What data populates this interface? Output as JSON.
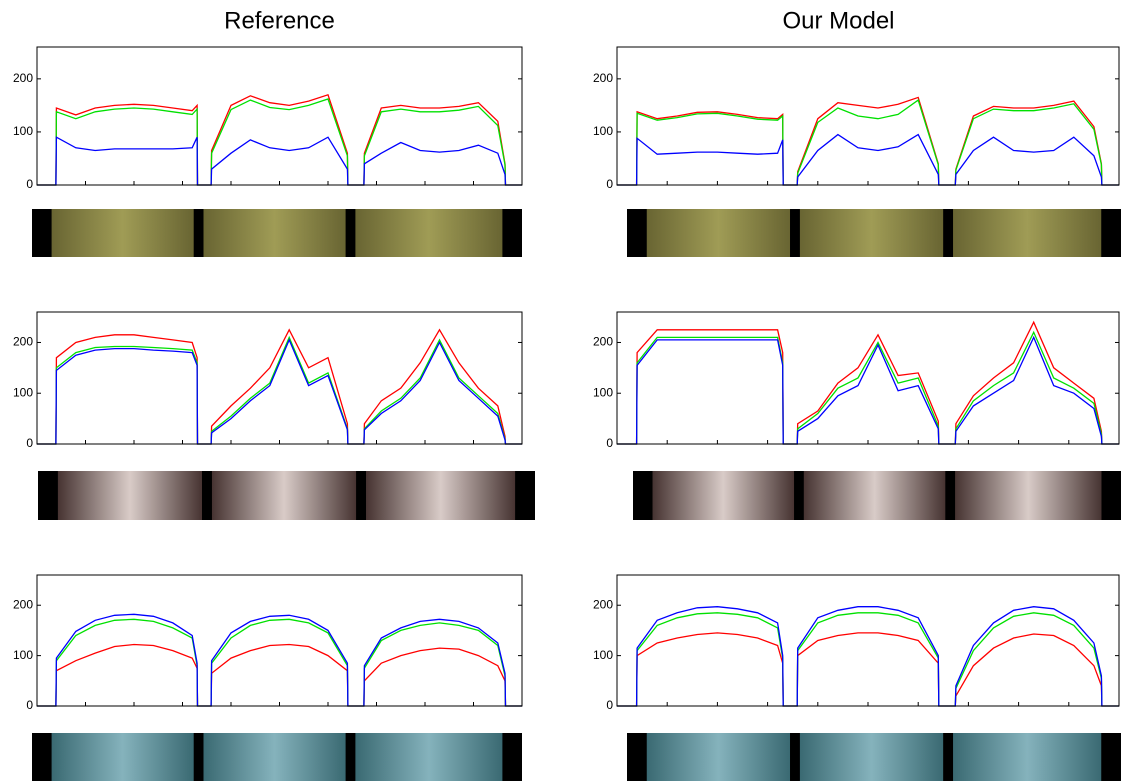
{
  "chart_data": [
    {
      "type": "line",
      "title": "Reference",
      "ylim": [
        0,
        260
      ],
      "yticks": [
        0,
        100,
        200
      ],
      "xlim": [
        0,
        100
      ],
      "x": [
        0,
        3.9,
        4,
        8,
        12,
        16,
        20,
        24,
        28,
        32,
        33,
        33.1,
        35.9,
        36,
        40,
        44,
        48,
        52,
        56,
        60,
        64,
        64.1,
        67.4,
        67.5,
        71,
        75,
        79,
        83,
        87,
        91,
        95,
        96.5,
        96.6,
        100
      ],
      "series": [
        {
          "color": "#ff0000",
          "values": [
            0,
            0,
            145,
            132,
            145,
            150,
            152,
            150,
            145,
            140,
            150,
            0,
            0,
            65,
            150,
            168,
            155,
            150,
            158,
            170,
            60,
            0,
            0,
            60,
            145,
            150,
            145,
            145,
            148,
            155,
            120,
            40,
            0,
            0
          ]
        },
        {
          "color": "#00e000",
          "values": [
            0,
            0,
            138,
            125,
            138,
            143,
            145,
            143,
            138,
            133,
            143,
            0,
            0,
            60,
            142,
            160,
            146,
            142,
            150,
            162,
            55,
            0,
            0,
            55,
            138,
            143,
            138,
            138,
            141,
            148,
            112,
            38,
            0,
            0
          ]
        },
        {
          "color": "#0000ff",
          "values": [
            0,
            0,
            90,
            70,
            65,
            68,
            68,
            68,
            68,
            70,
            90,
            0,
            0,
            30,
            60,
            85,
            70,
            65,
            70,
            90,
            30,
            0,
            0,
            40,
            60,
            80,
            65,
            62,
            65,
            75,
            60,
            20,
            0,
            0
          ]
        }
      ]
    },
    {
      "type": "line",
      "ylim": [
        0,
        260
      ],
      "yticks": [
        0,
        100,
        200
      ],
      "xlim": [
        0,
        100
      ],
      "x": [
        0,
        3.9,
        4,
        8,
        12,
        16,
        20,
        24,
        28,
        32,
        33,
        33.1,
        35.9,
        36,
        40,
        44,
        48,
        52,
        56,
        60,
        64,
        64.1,
        67.4,
        67.5,
        71,
        75,
        79,
        83,
        87,
        91,
        95,
        96.5,
        96.6,
        100
      ],
      "series": [
        {
          "color": "#ff0000",
          "values": [
            0,
            0,
            170,
            200,
            210,
            215,
            215,
            210,
            205,
            200,
            170,
            0,
            0,
            35,
            75,
            110,
            150,
            225,
            150,
            170,
            40,
            0,
            0,
            40,
            85,
            110,
            160,
            225,
            160,
            110,
            75,
            15,
            0,
            0
          ]
        },
        {
          "color": "#00e000",
          "values": [
            0,
            0,
            150,
            180,
            190,
            192,
            192,
            190,
            188,
            185,
            160,
            0,
            0,
            25,
            55,
            90,
            120,
            210,
            120,
            140,
            30,
            0,
            0,
            30,
            65,
            90,
            130,
            205,
            130,
            95,
            60,
            10,
            0,
            0
          ]
        },
        {
          "color": "#0000ff",
          "values": [
            0,
            0,
            145,
            175,
            185,
            188,
            188,
            185,
            183,
            180,
            155,
            0,
            0,
            22,
            50,
            85,
            115,
            205,
            115,
            135,
            28,
            0,
            0,
            28,
            60,
            85,
            125,
            200,
            125,
            90,
            55,
            8,
            0,
            0
          ]
        }
      ]
    },
    {
      "type": "line",
      "ylim": [
        0,
        260
      ],
      "yticks": [
        0,
        100,
        200
      ],
      "xlim": [
        0,
        100
      ],
      "x": [
        0,
        3.9,
        4,
        8,
        12,
        16,
        20,
        24,
        28,
        32,
        33,
        33.1,
        35.9,
        36,
        40,
        44,
        48,
        52,
        56,
        60,
        64,
        64.1,
        67.4,
        67.5,
        71,
        75,
        79,
        83,
        87,
        91,
        95,
        96.5,
        96.6,
        100
      ],
      "series": [
        {
          "color": "#ff0000",
          "values": [
            0,
            0,
            70,
            90,
            105,
            118,
            122,
            120,
            110,
            95,
            75,
            0,
            0,
            65,
            95,
            110,
            120,
            122,
            118,
            100,
            70,
            0,
            0,
            50,
            85,
            100,
            110,
            115,
            113,
            100,
            80,
            50,
            0,
            0
          ]
        },
        {
          "color": "#00e000",
          "values": [
            0,
            0,
            90,
            140,
            160,
            170,
            172,
            168,
            155,
            135,
            80,
            0,
            0,
            85,
            135,
            160,
            170,
            172,
            165,
            145,
            80,
            0,
            0,
            75,
            130,
            150,
            160,
            165,
            160,
            150,
            120,
            60,
            0,
            0
          ]
        },
        {
          "color": "#0000ff",
          "values": [
            0,
            0,
            95,
            148,
            170,
            180,
            182,
            178,
            165,
            140,
            85,
            0,
            0,
            90,
            145,
            168,
            178,
            180,
            172,
            150,
            85,
            0,
            0,
            80,
            135,
            155,
            168,
            172,
            168,
            155,
            125,
            65,
            0,
            0
          ]
        }
      ]
    },
    {
      "type": "line",
      "title": "Our Model",
      "ylim": [
        0,
        260
      ],
      "yticks": [
        0,
        100,
        200
      ],
      "xlim": [
        0,
        100
      ],
      "x": [
        0,
        3.9,
        4,
        8,
        12,
        16,
        20,
        24,
        28,
        32,
        33,
        33.1,
        35.9,
        36,
        40,
        44,
        48,
        52,
        56,
        60,
        64,
        64.1,
        67.4,
        67.5,
        71,
        75,
        79,
        83,
        87,
        91,
        95,
        96.5,
        96.6,
        100
      ],
      "series": [
        {
          "color": "#ff0000",
          "values": [
            0,
            0,
            138,
            125,
            130,
            137,
            138,
            133,
            127,
            125,
            133,
            0,
            0,
            25,
            125,
            155,
            150,
            145,
            152,
            165,
            40,
            0,
            0,
            30,
            130,
            148,
            145,
            145,
            150,
            158,
            110,
            40,
            0,
            0
          ]
        },
        {
          "color": "#00e000",
          "values": [
            0,
            0,
            135,
            122,
            127,
            134,
            135,
            130,
            124,
            122,
            130,
            0,
            0,
            22,
            118,
            145,
            130,
            125,
            133,
            160,
            38,
            0,
            0,
            28,
            125,
            143,
            140,
            140,
            145,
            153,
            105,
            38,
            0,
            0
          ]
        },
        {
          "color": "#0000ff",
          "values": [
            0,
            0,
            88,
            58,
            60,
            62,
            62,
            60,
            58,
            60,
            85,
            0,
            0,
            15,
            65,
            95,
            70,
            65,
            72,
            95,
            20,
            0,
            0,
            20,
            65,
            90,
            65,
            62,
            65,
            90,
            55,
            15,
            0,
            0
          ]
        }
      ]
    },
    {
      "type": "line",
      "ylim": [
        0,
        260
      ],
      "yticks": [
        0,
        100,
        200
      ],
      "xlim": [
        0,
        100
      ],
      "x": [
        0,
        3.9,
        4,
        8,
        12,
        16,
        20,
        24,
        28,
        32,
        33,
        33.1,
        35.9,
        36,
        40,
        44,
        48,
        52,
        56,
        60,
        64,
        64.1,
        67.4,
        67.5,
        71,
        75,
        79,
        83,
        87,
        91,
        95,
        96.5,
        96.6,
        100
      ],
      "series": [
        {
          "color": "#ff0000",
          "values": [
            0,
            0,
            180,
            225,
            225,
            225,
            225,
            225,
            225,
            225,
            180,
            0,
            0,
            40,
            65,
            120,
            150,
            215,
            135,
            140,
            45,
            0,
            0,
            40,
            95,
            130,
            160,
            240,
            150,
            120,
            90,
            25,
            0,
            0
          ]
        },
        {
          "color": "#00e000",
          "values": [
            0,
            0,
            160,
            210,
            210,
            210,
            210,
            210,
            210,
            210,
            160,
            0,
            0,
            30,
            60,
            110,
            130,
            200,
            120,
            130,
            35,
            0,
            0,
            30,
            85,
            115,
            140,
            220,
            130,
            110,
            80,
            20,
            0,
            0
          ]
        },
        {
          "color": "#0000ff",
          "values": [
            0,
            0,
            155,
            205,
            205,
            205,
            205,
            205,
            205,
            205,
            155,
            0,
            0,
            25,
            50,
            95,
            115,
            195,
            105,
            115,
            30,
            0,
            0,
            25,
            75,
            100,
            125,
            210,
            115,
            100,
            70,
            15,
            0,
            0
          ]
        }
      ]
    },
    {
      "type": "line",
      "ylim": [
        0,
        260
      ],
      "yticks": [
        0,
        100,
        200
      ],
      "xlim": [
        0,
        100
      ],
      "x": [
        0,
        3.9,
        4,
        8,
        12,
        16,
        20,
        24,
        28,
        32,
        33,
        33.1,
        35.9,
        36,
        40,
        44,
        48,
        52,
        56,
        60,
        64,
        64.1,
        67.4,
        67.5,
        71,
        75,
        79,
        83,
        87,
        91,
        95,
        96.5,
        96.6,
        100
      ],
      "series": [
        {
          "color": "#ff0000",
          "values": [
            0,
            0,
            100,
            125,
            135,
            142,
            145,
            142,
            135,
            120,
            85,
            0,
            0,
            100,
            130,
            140,
            145,
            145,
            140,
            130,
            85,
            0,
            0,
            20,
            80,
            115,
            135,
            143,
            140,
            120,
            80,
            40,
            0,
            0
          ]
        },
        {
          "color": "#00e000",
          "values": [
            0,
            0,
            110,
            160,
            175,
            183,
            185,
            182,
            175,
            155,
            95,
            0,
            0,
            110,
            165,
            180,
            185,
            185,
            180,
            165,
            95,
            0,
            0,
            35,
            110,
            155,
            178,
            185,
            180,
            160,
            115,
            55,
            0,
            0
          ]
        },
        {
          "color": "#0000ff",
          "values": [
            0,
            0,
            115,
            170,
            185,
            195,
            197,
            193,
            185,
            165,
            100,
            0,
            0,
            115,
            175,
            190,
            197,
            197,
            190,
            175,
            100,
            0,
            0,
            40,
            120,
            165,
            190,
            197,
            193,
            170,
            125,
            60,
            0,
            0
          ]
        }
      ]
    }
  ]
}
